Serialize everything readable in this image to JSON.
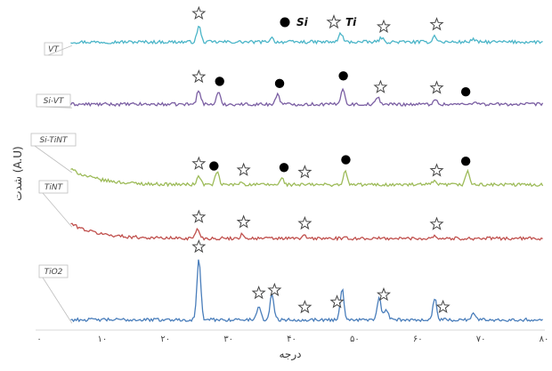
{
  "chart_data": {
    "type": "line",
    "xlabel": "درجه",
    "ylabel": "شدت (A.U)",
    "xlim": [
      0,
      80
    ],
    "x_ticks": [
      0,
      10,
      20,
      30,
      40,
      50,
      60,
      70,
      80
    ],
    "x_tick_labels": [
      "۰",
      "۱۰",
      "۲۰",
      "۳۰",
      "۴۰",
      "۵۰",
      "۶۰",
      "۷۰",
      "۸۰"
    ],
    "legend": [
      {
        "marker": "filled-circle",
        "label": "Si"
      },
      {
        "marker": "star",
        "label": "Ti"
      }
    ],
    "legend_position": "top",
    "grid": false,
    "series": [
      {
        "name": "VT",
        "color": "#4bb5c8",
        "baseline": 0.92,
        "start_level": 0.92,
        "peaks": [
          [
            25.3,
            0.45
          ],
          [
            36.8,
            0.12
          ],
          [
            47.8,
            0.25
          ],
          [
            54.2,
            0.12
          ],
          [
            62.7,
            0.18
          ],
          [
            68.7,
            0.08
          ]
        ],
        "markers": [
          {
            "x": 25.3,
            "type": "star"
          },
          {
            "x": 54.6,
            "type": "star"
          },
          {
            "x": 63.0,
            "type": "star"
          }
        ]
      },
      {
        "name": "Si-VT",
        "color": "#7b5fa3",
        "baseline": 0.72,
        "start_level": 0.72,
        "peaks": [
          [
            25.3,
            0.42
          ],
          [
            28.4,
            0.33
          ],
          [
            37.8,
            0.3
          ],
          [
            48.1,
            0.46
          ],
          [
            53.7,
            0.2
          ],
          [
            62.7,
            0.14
          ],
          [
            69.1,
            0.1
          ]
        ],
        "markers": [
          {
            "x": 25.3,
            "type": "star"
          },
          {
            "x": 54.1,
            "type": "star"
          },
          {
            "x": 63.0,
            "type": "star"
          },
          {
            "x": 28.6,
            "type": "circle"
          },
          {
            "x": 38.1,
            "type": "circle"
          },
          {
            "x": 48.2,
            "type": "circle"
          },
          {
            "x": 67.6,
            "type": "circle"
          }
        ]
      },
      {
        "name": "Si-TiNT",
        "color": "#9dbb59",
        "baseline": 0.46,
        "start_level": 0.9,
        "peaks": [
          [
            25.3,
            0.24
          ],
          [
            28.2,
            0.35
          ],
          [
            32.1,
            0.08
          ],
          [
            38.5,
            0.17
          ],
          [
            48.5,
            0.36
          ],
          [
            62.5,
            0.09
          ],
          [
            67.9,
            0.4
          ]
        ],
        "markers": [
          {
            "x": 25.3,
            "type": "star"
          },
          {
            "x": 32.4,
            "type": "star"
          },
          {
            "x": 42.1,
            "type": "star"
          },
          {
            "x": 63.0,
            "type": "star"
          },
          {
            "x": 27.7,
            "type": "circle"
          },
          {
            "x": 38.8,
            "type": "circle"
          },
          {
            "x": 48.6,
            "type": "circle"
          },
          {
            "x": 67.6,
            "type": "circle"
          }
        ]
      },
      {
        "name": "TiNT",
        "color": "#c0504d",
        "baseline": 0.2,
        "start_level": 0.62,
        "peaks": [
          [
            25.1,
            0.28
          ],
          [
            32.2,
            0.12
          ],
          [
            42.0,
            0.07
          ],
          [
            62.6,
            0.08
          ]
        ],
        "markers": [
          {
            "x": 25.3,
            "type": "star"
          },
          {
            "x": 32.4,
            "type": "star"
          },
          {
            "x": 42.1,
            "type": "star"
          },
          {
            "x": 63.0,
            "type": "star"
          }
        ]
      },
      {
        "name": "TiO2",
        "color": "#4a7ebb",
        "baseline": 0.14,
        "start_level": 0.14,
        "peaks": [
          [
            25.3,
            1.7
          ],
          [
            34.8,
            0.4
          ],
          [
            36.9,
            0.75
          ],
          [
            48.0,
            0.87
          ],
          [
            53.9,
            0.62
          ],
          [
            55.0,
            0.3
          ],
          [
            62.7,
            0.6
          ],
          [
            68.8,
            0.2
          ]
        ],
        "markers": [
          {
            "x": 25.3,
            "type": "star"
          },
          {
            "x": 34.8,
            "type": "star"
          },
          {
            "x": 37.3,
            "type": "star"
          },
          {
            "x": 42.1,
            "type": "star"
          },
          {
            "x": 47.2,
            "type": "star"
          },
          {
            "x": 54.6,
            "type": "star"
          },
          {
            "x": 64.0,
            "type": "star"
          }
        ]
      }
    ]
  }
}
